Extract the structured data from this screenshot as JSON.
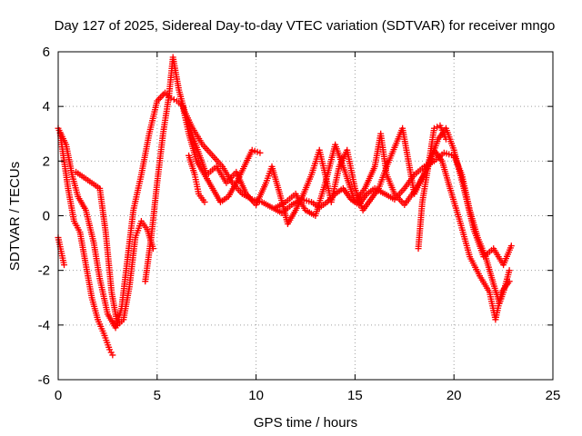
{
  "chart_data": {
    "type": "scatter",
    "title": "Day 127 of 2025, Sidereal Day-to-day VTEC variation (SDTVAR) for receiver mngo",
    "xlabel": "GPS time / hours",
    "ylabel": "SDTVAR / TECUs",
    "xlim": [
      0,
      25
    ],
    "ylim": [
      -6,
      6
    ],
    "x_ticks": [
      "0",
      "5",
      "10",
      "15",
      "20",
      "25"
    ],
    "y_ticks": [
      "-6",
      "-4",
      "-2",
      "0",
      "2",
      "4",
      "6"
    ],
    "marker": "+",
    "grid": true,
    "series": [
      {
        "name": "trace-1",
        "color": "#ff0000",
        "points": [
          [
            0,
            3.2
          ],
          [
            0.4,
            2.6
          ],
          [
            0.7,
            1.5
          ],
          [
            1.0,
            0.7
          ],
          [
            1.4,
            0.2
          ],
          [
            1.8,
            -1.0
          ],
          [
            2.1,
            -2.3
          ],
          [
            2.5,
            -3.6
          ],
          [
            2.9,
            -4.1
          ],
          [
            3.2,
            -3.4
          ],
          [
            3.5,
            -1.6
          ],
          [
            3.8,
            0.2
          ],
          [
            4.2,
            1.5
          ],
          [
            4.6,
            3.0
          ],
          [
            5.0,
            4.2
          ],
          [
            5.4,
            4.5
          ],
          [
            5.7,
            4.3
          ],
          [
            6.0,
            4.2
          ],
          [
            6.3,
            4.0
          ],
          [
            6.6,
            3.0
          ],
          [
            7.0,
            2.0
          ],
          [
            7.4,
            1.5
          ],
          [
            7.8,
            1.0
          ],
          [
            8.2,
            0.5
          ],
          [
            8.6,
            0.7
          ],
          [
            9.0,
            1.2
          ],
          [
            9.4,
            1.8
          ],
          [
            9.8,
            2.4
          ],
          [
            10.2,
            2.3
          ]
        ]
      },
      {
        "name": "trace-2",
        "color": "#ff0000",
        "points": [
          [
            0.1,
            3.0
          ],
          [
            0.5,
            1.0
          ],
          [
            0.8,
            -0.2
          ],
          [
            1.1,
            -0.6
          ],
          [
            1.4,
            -1.8
          ],
          [
            1.7,
            -3.0
          ],
          [
            2.0,
            -3.8
          ],
          [
            2.3,
            -4.3
          ],
          [
            2.6,
            -4.9
          ],
          [
            2.75,
            -5.1
          ]
        ]
      },
      {
        "name": "trace-3",
        "color": "#ff0000",
        "points": [
          [
            0.9,
            1.6
          ],
          [
            1.3,
            1.4
          ],
          [
            1.7,
            1.2
          ],
          [
            2.1,
            1.0
          ],
          [
            2.4,
            -0.6
          ],
          [
            2.7,
            -2.8
          ],
          [
            3.0,
            -4.0
          ],
          [
            3.3,
            -3.8
          ],
          [
            3.6,
            -2.6
          ],
          [
            3.9,
            -0.8
          ],
          [
            4.2,
            -0.2
          ],
          [
            4.5,
            -0.5
          ],
          [
            4.8,
            -1.2
          ]
        ]
      },
      {
        "name": "trace-4",
        "color": "#ff0000",
        "points": [
          [
            4.4,
            -2.4
          ],
          [
            4.7,
            -0.8
          ],
          [
            5.0,
            1.2
          ],
          [
            5.3,
            3.0
          ],
          [
            5.6,
            4.4
          ],
          [
            5.8,
            5.8
          ],
          [
            6.1,
            4.6
          ],
          [
            6.4,
            3.8
          ],
          [
            6.8,
            3.2
          ],
          [
            7.3,
            2.6
          ],
          [
            7.8,
            2.2
          ],
          [
            8.3,
            1.8
          ],
          [
            8.8,
            1.2
          ],
          [
            9.3,
            0.8
          ],
          [
            9.8,
            0.6
          ],
          [
            10.3,
            0.5
          ],
          [
            10.8,
            0.3
          ],
          [
            11.3,
            0.1
          ],
          [
            11.8,
            0.4
          ],
          [
            12.3,
            0.6
          ],
          [
            12.8,
            0.5
          ],
          [
            13.2,
            0.3
          ],
          [
            13.6,
            0.5
          ],
          [
            14.0,
            0.8
          ],
          [
            14.4,
            1.0
          ],
          [
            14.8,
            0.6
          ],
          [
            15.2,
            0.4
          ],
          [
            15.6,
            0.8
          ],
          [
            16.0,
            1.0
          ],
          [
            16.5,
            0.8
          ],
          [
            17.0,
            0.6
          ],
          [
            17.5,
            1.0
          ],
          [
            18.0,
            1.5
          ],
          [
            18.5,
            1.8
          ],
          [
            19.0,
            2.0
          ],
          [
            19.5,
            2.3
          ],
          [
            20.0,
            2.2
          ],
          [
            20.4,
            1.5
          ],
          [
            20.8,
            0.2
          ],
          [
            21.2,
            -0.8
          ],
          [
            21.6,
            -1.5
          ],
          [
            22.0,
            -2.5
          ],
          [
            22.3,
            -3.2
          ],
          [
            22.5,
            -2.8
          ],
          [
            22.8,
            -2.0
          ]
        ]
      },
      {
        "name": "trace-5",
        "color": "#ff0000",
        "points": [
          [
            6.5,
            3.5
          ],
          [
            7.0,
            2.5
          ],
          [
            7.5,
            1.5
          ],
          [
            8.0,
            1.8
          ],
          [
            8.5,
            1.2
          ],
          [
            9.0,
            1.6
          ],
          [
            9.5,
            0.8
          ],
          [
            10.0,
            0.4
          ],
          [
            10.5,
            1.2
          ],
          [
            10.8,
            1.8
          ],
          [
            11.2,
            0.8
          ],
          [
            11.6,
            -0.3
          ],
          [
            12.0,
            0.2
          ],
          [
            12.4,
            0.8
          ],
          [
            12.8,
            1.5
          ],
          [
            13.2,
            2.4
          ],
          [
            13.5,
            1.5
          ],
          [
            13.8,
            0.5
          ],
          [
            14.2,
            1.8
          ],
          [
            14.6,
            2.4
          ],
          [
            15.0,
            1.0
          ],
          [
            15.4,
            0.2
          ],
          [
            15.8,
            0.6
          ],
          [
            16.2,
            1.0
          ],
          [
            16.6,
            1.8
          ],
          [
            17.0,
            2.5
          ],
          [
            17.4,
            3.2
          ],
          [
            17.7,
            2.0
          ],
          [
            18.0,
            0.8
          ],
          [
            18.4,
            1.4
          ],
          [
            18.8,
            2.0
          ],
          [
            19.2,
            2.8
          ],
          [
            19.6,
            3.2
          ],
          [
            20.0,
            2.4
          ],
          [
            20.5,
            1.0
          ],
          [
            21.0,
            -0.5
          ],
          [
            21.5,
            -1.5
          ],
          [
            22.0,
            -1.2
          ],
          [
            22.5,
            -1.8
          ],
          [
            22.9,
            -1.1
          ]
        ]
      },
      {
        "name": "trace-6",
        "color": "#ff0000",
        "points": [
          [
            11.0,
            0.3
          ],
          [
            11.5,
            0.5
          ],
          [
            12.0,
            0.8
          ],
          [
            12.5,
            0.2
          ],
          [
            13.0,
            0.0
          ],
          [
            13.5,
            1.2
          ],
          [
            14.0,
            2.6
          ],
          [
            14.5,
            1.6
          ],
          [
            15.0,
            0.5
          ],
          [
            15.5,
            1.0
          ],
          [
            16.0,
            1.8
          ],
          [
            16.3,
            3.0
          ],
          [
            16.6,
            1.5
          ],
          [
            17.0,
            0.8
          ],
          [
            17.5,
            0.4
          ],
          [
            18.0,
            0.9
          ],
          [
            18.5,
            1.5
          ],
          [
            19.0,
            2.4
          ],
          [
            19.4,
            2.0
          ],
          [
            19.8,
            1.0
          ],
          [
            20.3,
            -0.2
          ],
          [
            20.8,
            -1.5
          ],
          [
            21.3,
            -2.2
          ],
          [
            21.8,
            -2.8
          ],
          [
            22.1,
            -3.8
          ],
          [
            22.4,
            -2.8
          ],
          [
            22.8,
            -2.4
          ]
        ]
      },
      {
        "name": "trace-7",
        "color": "#ff0000",
        "points": [
          [
            18.2,
            -1.2
          ],
          [
            18.4,
            0.5
          ],
          [
            18.7,
            1.8
          ],
          [
            19.0,
            3.2
          ],
          [
            19.3,
            3.3
          ],
          [
            19.6,
            2.8
          ]
        ]
      },
      {
        "name": "trace-8",
        "color": "#ff0000",
        "points": [
          [
            0.0,
            -0.8
          ],
          [
            0.15,
            -1.3
          ],
          [
            0.3,
            -1.8
          ]
        ]
      },
      {
        "name": "trace-9",
        "color": "#ff0000",
        "points": [
          [
            6.6,
            2.2
          ],
          [
            6.9,
            1.5
          ],
          [
            7.1,
            0.8
          ],
          [
            7.4,
            0.5
          ]
        ]
      }
    ]
  }
}
